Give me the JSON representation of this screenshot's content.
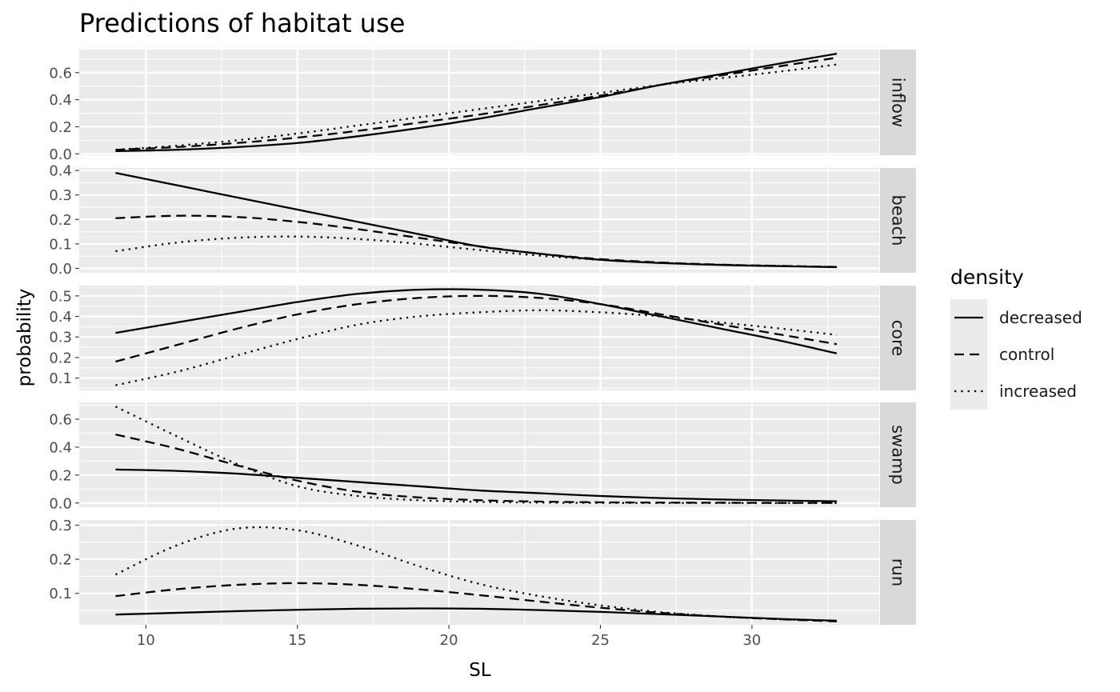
{
  "chart_data": {
    "type": "line",
    "title": "Predictions of habitat use",
    "xlabel": "SL",
    "ylabel": "probability",
    "xlim": [
      7.8,
      34.2
    ],
    "x_ticks": [
      10,
      15,
      20,
      25,
      30
    ],
    "legend": {
      "title": "density",
      "position": "right"
    },
    "series_styles": [
      {
        "name": "decreased",
        "linetype": "solid"
      },
      {
        "name": "control",
        "linetype": "dashed"
      },
      {
        "name": "increased",
        "linetype": "dotted"
      }
    ],
    "x": [
      9,
      11,
      13,
      15,
      17,
      19,
      21,
      23,
      25,
      27,
      29,
      31,
      32.8
    ],
    "facets": [
      {
        "strip": "inflow",
        "ylim": [
          -0.01,
          0.77
        ],
        "y_ticks": [
          0.0,
          0.2,
          0.4,
          0.6
        ],
        "y_tick_labels": [
          "0.0",
          "0.2",
          "0.4",
          "0.6"
        ],
        "series": [
          {
            "name": "decreased",
            "values": [
              0.02,
              0.03,
              0.05,
              0.08,
              0.13,
              0.19,
              0.26,
              0.34,
              0.42,
              0.51,
              0.59,
              0.67,
              0.74
            ]
          },
          {
            "name": "control",
            "values": [
              0.03,
              0.05,
              0.08,
              0.12,
              0.17,
              0.23,
              0.29,
              0.36,
              0.43,
              0.51,
              0.58,
              0.65,
              0.71
            ]
          },
          {
            "name": "increased",
            "values": [
              0.03,
              0.06,
              0.1,
              0.15,
              0.21,
              0.27,
              0.33,
              0.39,
              0.45,
              0.51,
              0.56,
              0.61,
              0.66
            ]
          }
        ]
      },
      {
        "strip": "beach",
        "ylim": [
          -0.018,
          0.41
        ],
        "y_ticks": [
          0.0,
          0.1,
          0.2,
          0.3,
          0.4
        ],
        "y_tick_labels": [
          "0.0",
          "0.1",
          "0.2",
          "0.3",
          "0.4"
        ],
        "series": [
          {
            "name": "decreased",
            "values": [
              0.39,
              0.34,
              0.29,
              0.24,
              0.19,
              0.14,
              0.09,
              0.06,
              0.035,
              0.022,
              0.014,
              0.009,
              0.005
            ]
          },
          {
            "name": "control",
            "values": [
              0.205,
              0.215,
              0.21,
              0.19,
              0.16,
              0.125,
              0.09,
              0.06,
              0.038,
              0.024,
              0.015,
              0.01,
              0.006
            ]
          },
          {
            "name": "increased",
            "values": [
              0.07,
              0.105,
              0.125,
              0.13,
              0.12,
              0.1,
              0.075,
              0.052,
              0.035,
              0.023,
              0.015,
              0.01,
              0.006
            ]
          }
        ]
      },
      {
        "strip": "core",
        "ylim": [
          0.04,
          0.55
        ],
        "y_ticks": [
          0.1,
          0.2,
          0.3,
          0.4,
          0.5
        ],
        "y_tick_labels": [
          "0.1",
          "0.2",
          "0.3",
          "0.4",
          "0.5"
        ],
        "series": [
          {
            "name": "decreased",
            "values": [
              0.32,
              0.37,
              0.42,
              0.47,
              0.51,
              0.53,
              0.53,
              0.51,
              0.46,
              0.4,
              0.34,
              0.28,
              0.22
            ]
          },
          {
            "name": "control",
            "values": [
              0.18,
              0.26,
              0.34,
              0.41,
              0.46,
              0.49,
              0.5,
              0.49,
              0.46,
              0.41,
              0.36,
              0.31,
              0.265
            ]
          },
          {
            "name": "increased",
            "values": [
              0.065,
              0.13,
              0.21,
              0.29,
              0.36,
              0.4,
              0.42,
              0.43,
              0.42,
              0.4,
              0.37,
              0.34,
              0.31
            ]
          }
        ]
      },
      {
        "strip": "swamp",
        "ylim": [
          -0.03,
          0.72
        ],
        "y_ticks": [
          0.0,
          0.2,
          0.4,
          0.6
        ],
        "y_tick_labels": [
          "0.0",
          "0.2",
          "0.4",
          "0.6"
        ],
        "series": [
          {
            "name": "decreased",
            "values": [
              0.24,
              0.23,
              0.21,
              0.18,
              0.15,
              0.12,
              0.09,
              0.07,
              0.05,
              0.035,
              0.025,
              0.018,
              0.012
            ]
          },
          {
            "name": "control",
            "values": [
              0.49,
              0.39,
              0.27,
              0.16,
              0.08,
              0.04,
              0.02,
              0.01,
              0.005,
              0.003,
              0.002,
              0.001,
              0.001
            ]
          },
          {
            "name": "increased",
            "values": [
              0.69,
              0.48,
              0.28,
              0.12,
              0.05,
              0.02,
              0.008,
              0.003,
              0.001,
              0.0,
              0.0,
              0.0,
              0.0
            ]
          }
        ]
      },
      {
        "strip": "run",
        "ylim": [
          0.008,
          0.315
        ],
        "y_ticks": [
          0.1,
          0.2,
          0.3
        ],
        "y_tick_labels": [
          "0.1",
          "0.2",
          "0.3"
        ],
        "series": [
          {
            "name": "decreased",
            "values": [
              0.038,
              0.043,
              0.048,
              0.052,
              0.055,
              0.056,
              0.055,
              0.051,
              0.046,
              0.039,
              0.032,
              0.025,
              0.02
            ]
          },
          {
            "name": "control",
            "values": [
              0.092,
              0.112,
              0.125,
              0.13,
              0.125,
              0.112,
              0.095,
              0.076,
              0.058,
              0.043,
              0.032,
              0.024,
              0.018
            ]
          },
          {
            "name": "increased",
            "values": [
              0.155,
              0.24,
              0.29,
              0.285,
              0.24,
              0.18,
              0.128,
              0.092,
              0.065,
              0.045,
              0.032,
              0.024,
              0.02
            ]
          }
        ]
      }
    ]
  }
}
